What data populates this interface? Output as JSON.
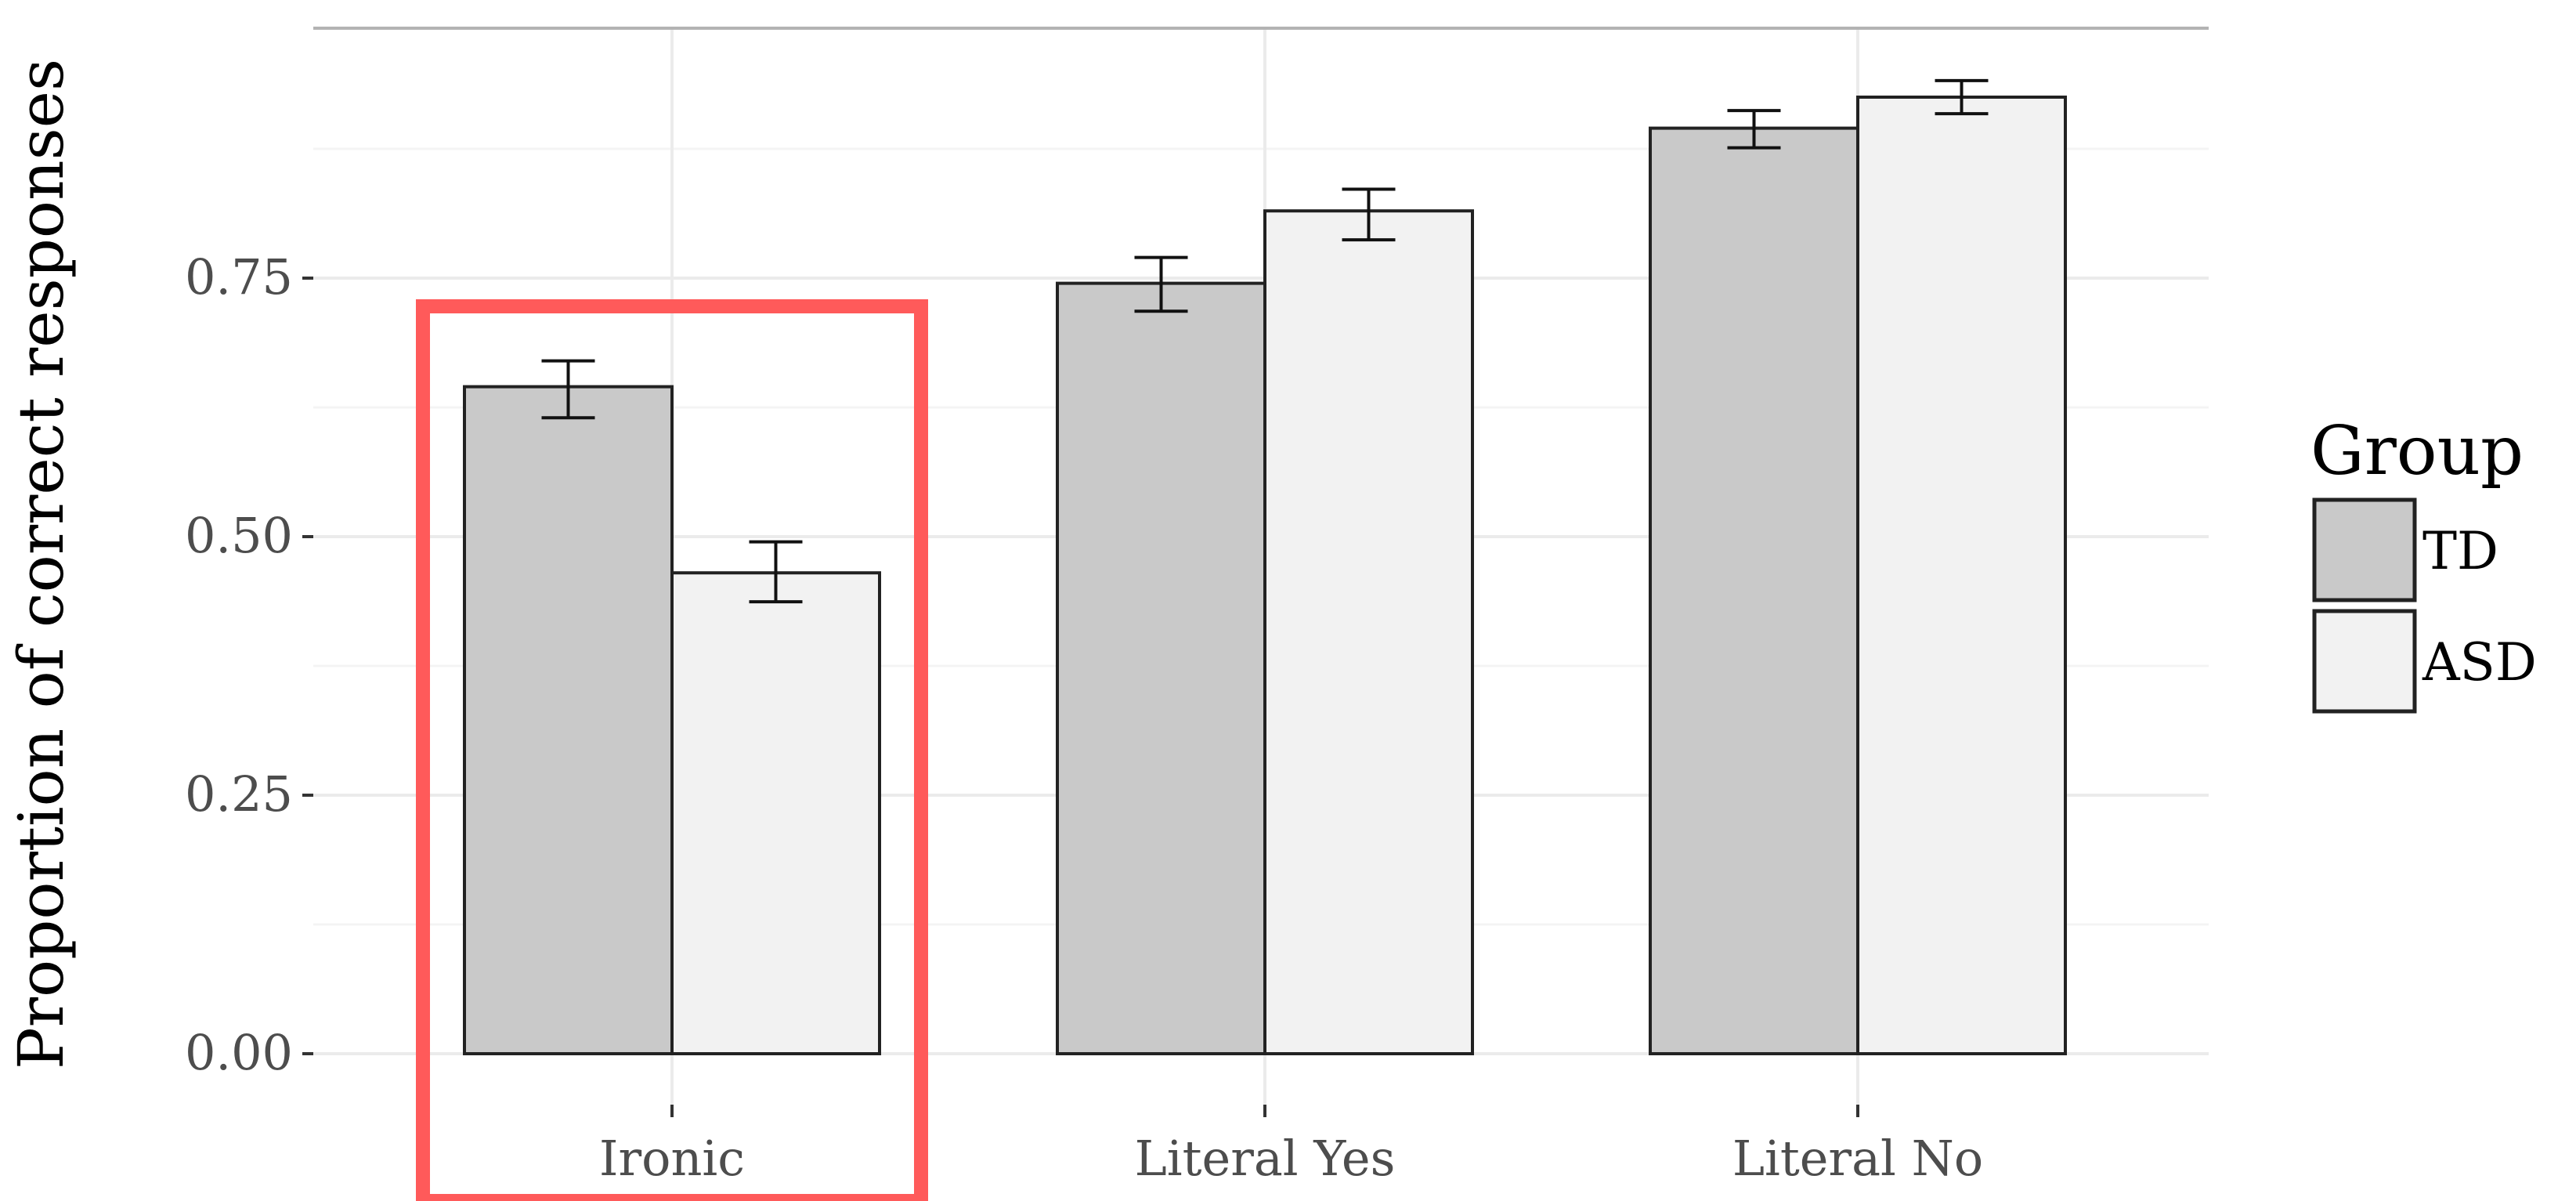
{
  "chart_data": {
    "type": "bar",
    "title": "",
    "xlabel": "",
    "ylabel": "Proportion of correct responses",
    "ylim": [
      0,
      0.93
    ],
    "yticks": [
      0.0,
      0.25,
      0.5,
      0.75
    ],
    "ytick_labels": [
      "0.00",
      "0.25",
      "0.50",
      "0.75"
    ],
    "grid": true,
    "categories": [
      "Ironic",
      "Literal Yes",
      "Literal No"
    ],
    "series": [
      {
        "name": "TD",
        "color": "#c9c9c9",
        "values": [
          0.645,
          0.745,
          0.895
        ],
        "error_low": [
          0.615,
          0.718,
          0.876
        ],
        "error_high": [
          0.67,
          0.77,
          0.912
        ]
      },
      {
        "name": "ASD",
        "color": "#f2f2f2",
        "values": [
          0.465,
          0.815,
          0.925
        ],
        "error_low": [
          0.437,
          0.787,
          0.909
        ],
        "error_high": [
          0.495,
          0.836,
          0.941
        ]
      }
    ],
    "legend": {
      "title": "Group",
      "position": "right"
    },
    "highlight": {
      "category": "Ironic",
      "color": "#ff5a5a"
    }
  }
}
